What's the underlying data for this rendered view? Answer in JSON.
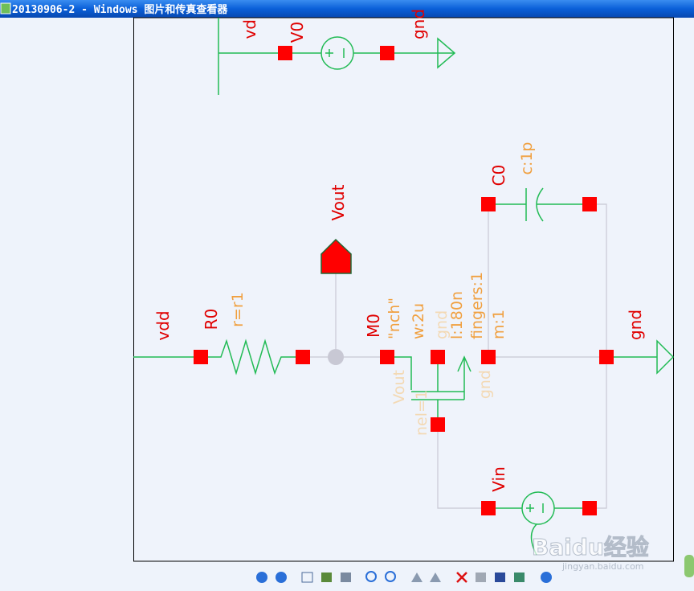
{
  "window": {
    "title": "20130906-2 - Windows 图片和传真查看器"
  },
  "schematic": {
    "labels": [
      "vd",
      "V0",
      "gnd",
      "Vout",
      "C0",
      "c:1p",
      "vdd",
      "R0",
      "r=r1",
      "M0",
      "\"nch\"",
      "w:2u",
      "gnd",
      "l:180n",
      "fingers:1",
      "m:1",
      "gnd",
      "Vout",
      "nel=1",
      "gnd",
      "Vin"
    ]
  },
  "watermark": {
    "brand": "Baidu经验",
    "url": "jingyan.baidu.com"
  }
}
